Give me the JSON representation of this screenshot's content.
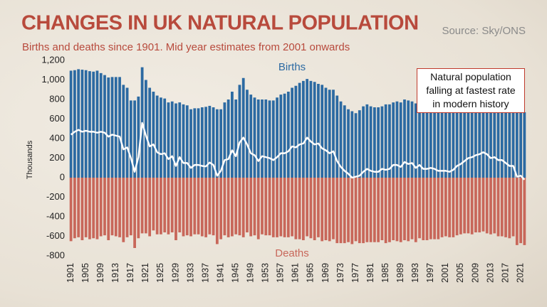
{
  "chart_data": {
    "type": "bar",
    "title": "CHANGES IN UK NATURAL POPULATION",
    "subtitle": "Births and deaths since 1901. Mid year estimates from 2001 onwards",
    "source": "Source: Sky/ONS",
    "y_label": "Thousands",
    "annotation": "Natural population falling at fastest rate in modern history",
    "ylim": [
      -800,
      1200
    ],
    "yticks": [
      -800,
      -600,
      -400,
      -200,
      0,
      200,
      400,
      600,
      800,
      {
        "value": 1000,
        "label": "1,000"
      },
      {
        "value": 1200,
        "label": "1,200"
      }
    ],
    "categories": [
      "1901",
      null,
      null,
      null,
      "1905",
      null,
      null,
      null,
      "1909",
      null,
      null,
      null,
      "1913",
      null,
      null,
      null,
      "1917",
      null,
      null,
      null,
      "1921",
      null,
      null,
      null,
      "1925",
      null,
      null,
      null,
      "1929",
      null,
      null,
      null,
      "1933",
      null,
      null,
      null,
      "1937",
      null,
      null,
      null,
      "1941",
      null,
      null,
      null,
      "1945",
      null,
      null,
      null,
      "1949",
      null,
      null,
      null,
      "1953",
      null,
      null,
      null,
      "1957",
      null,
      null,
      null,
      "1961",
      null,
      null,
      null,
      "1965",
      null,
      null,
      null,
      "1969",
      null,
      null,
      null,
      "1973",
      null,
      null,
      null,
      "1977",
      null,
      null,
      null,
      "1981",
      null,
      null,
      null,
      "1985",
      null,
      null,
      null,
      "1989",
      null,
      null,
      null,
      "1993",
      null,
      null,
      null,
      "1997",
      null,
      null,
      null,
      "2001",
      null,
      null,
      null,
      "2005",
      null,
      null,
      null,
      "2009",
      null,
      null,
      null,
      "2013",
      null,
      null,
      null,
      "2017",
      null,
      null,
      null,
      "2021",
      null
    ],
    "series": [
      {
        "name": "Births",
        "type": "bar",
        "color": "#2c6aa2",
        "values": [
          1095,
          1100,
          1110,
          1105,
          1100,
          1090,
          1085,
          1095,
          1070,
          1050,
          1025,
          1030,
          1030,
          1030,
          950,
          920,
          790,
          790,
          830,
          1130,
          1000,
          920,
          880,
          840,
          820,
          810,
          770,
          780,
          760,
          770,
          750,
          740,
          700,
          710,
          710,
          720,
          725,
          735,
          720,
          700,
          700,
          770,
          800,
          880,
          800,
          950,
          1020,
          900,
          850,
          820,
          800,
          800,
          800,
          790,
          790,
          820,
          850,
          860,
          880,
          920,
          940,
          970,
          990,
          1010,
          990,
          980,
          960,
          950,
          920,
          900,
          900,
          840,
          780,
          740,
          700,
          680,
          660,
          690,
          730,
          750,
          730,
          720,
          720,
          730,
          750,
          750,
          770,
          780,
          770,
          800,
          790,
          780,
          760,
          750,
          730,
          730,
          730,
          720,
          700,
          680,
          670,
          670,
          690,
          710,
          720,
          740,
          770,
          790,
          790,
          800,
          810,
          810,
          780,
          780,
          780,
          780,
          760,
          740,
          720,
          680,
          690,
          670
        ]
      },
      {
        "name": "Deaths",
        "type": "bar",
        "color": "#c8675a",
        "values": [
          -650,
          -620,
          -610,
          -640,
          -610,
          -630,
          -620,
          -630,
          -600,
          -590,
          -640,
          -590,
          -600,
          -610,
          -660,
          -610,
          -590,
          -720,
          -620,
          -570,
          -570,
          -600,
          -540,
          -580,
          -580,
          -560,
          -580,
          -560,
          -640,
          -560,
          -600,
          -590,
          -600,
          -580,
          -580,
          -600,
          -610,
          -580,
          -590,
          -680,
          -630,
          -590,
          -610,
          -600,
          -580,
          -590,
          -610,
          -560,
          -600,
          -590,
          -630,
          -580,
          -590,
          -590,
          -610,
          -610,
          -600,
          -610,
          -610,
          -600,
          -630,
          -630,
          -640,
          -600,
          -620,
          -640,
          -610,
          -650,
          -640,
          -650,
          -630,
          -670,
          -670,
          -670,
          -660,
          -680,
          -650,
          -670,
          -670,
          -660,
          -660,
          -660,
          -660,
          -640,
          -670,
          -660,
          -640,
          -650,
          -660,
          -640,
          -650,
          -630,
          -660,
          -620,
          -640,
          -640,
          -630,
          -630,
          -630,
          -610,
          -600,
          -610,
          -610,
          -590,
          -580,
          -570,
          -570,
          -580,
          -560,
          -560,
          -550,
          -570,
          -580,
          -570,
          -600,
          -600,
          -610,
          -620,
          -600,
          -690,
          -670,
          -690
        ]
      },
      {
        "type": "line",
        "color": "#ffffff",
        "values": [
          440,
          470,
          490,
          470,
          480,
          470,
          470,
          460,
          470,
          460,
          420,
          440,
          430,
          420,
          290,
          310,
          200,
          60,
          210,
          560,
          430,
          320,
          340,
          260,
          240,
          250,
          190,
          220,
          120,
          210,
          150,
          150,
          100,
          130,
          130,
          120,
          115,
          155,
          130,
          20,
          70,
          180,
          190,
          280,
          220,
          360,
          410,
          340,
          250,
          230,
          170,
          220,
          210,
          200,
          180,
          210,
          250,
          250,
          270,
          320,
          310,
          340,
          350,
          410,
          370,
          340,
          350,
          300,
          280,
          250,
          270,
          170,
          110,
          70,
          40,
          0,
          10,
          20,
          60,
          90,
          70,
          60,
          60,
          90,
          80,
          90,
          130,
          130,
          110,
          160,
          140,
          150,
          100,
          130,
          90,
          90,
          100,
          90,
          70,
          70,
          70,
          60,
          80,
          120,
          140,
          170,
          200,
          210,
          230,
          240,
          260,
          240,
          200,
          210,
          180,
          180,
          150,
          120,
          120,
          10,
          20,
          -20
        ]
      }
    ]
  }
}
